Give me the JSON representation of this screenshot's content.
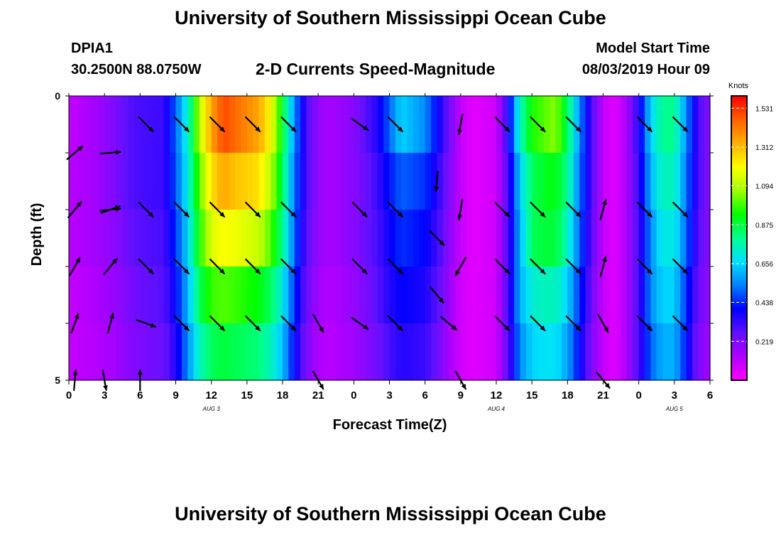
{
  "header": {
    "title": "University of Southern Mississippi Ocean Cube",
    "station_id": "DPIA1",
    "station_location": "30.2500N 88.0750W",
    "plot_title": "2-D Currents Speed-Magnitude",
    "model_start_label": "Model Start Time",
    "model_start_value": "08/03/2019 Hour 09"
  },
  "footer": {
    "title": "University of Southern Mississippi Ocean Cube"
  },
  "chart_data": {
    "type": "heatmap",
    "xlabel": "Forecast Time(Z)",
    "ylabel": "Depth (ft)",
    "x_tick_labels": [
      "0",
      "3",
      "6",
      "9",
      "12",
      "15",
      "18",
      "21",
      "0",
      "3",
      "6",
      "9",
      "12",
      "15",
      "18",
      "21",
      "0",
      "3",
      "6"
    ],
    "y_tick_labels": [
      "0",
      "5"
    ],
    "y_range": [
      0,
      5
    ],
    "x_range_hours": [
      0,
      54
    ],
    "date_labels": [
      {
        "label": "AUG 3",
        "hour": 12
      },
      {
        "label": "AUG 4",
        "hour": 36
      },
      {
        "label": "AUG 5",
        "hour": 51
      }
    ],
    "colorbar": {
      "unit": "Knots",
      "tick_labels": [
        "1.531",
        "1.312",
        "1.094",
        "0.875",
        "0.656",
        "0.438",
        "0.219"
      ],
      "tick_values": [
        1.531,
        1.312,
        1.094,
        0.875,
        0.656,
        0.438,
        0.219
      ],
      "range": [
        0,
        1.6
      ],
      "colors": [
        "#ff00ff",
        "#b000ff",
        "#6010ff",
        "#0000ff",
        "#0080ff",
        "#00e0ff",
        "#00ff90",
        "#00ff00",
        "#a0ff00",
        "#ffff00",
        "#ffb000",
        "#ff6000",
        "#ff0000"
      ]
    },
    "depth_bins": [
      0,
      1,
      2,
      3,
      4,
      5
    ],
    "speed_profile": {
      "hours": [
        0,
        2,
        4,
        5,
        6,
        8,
        9,
        10,
        11,
        12,
        13,
        14,
        15,
        16,
        17,
        18,
        19,
        20,
        21,
        22,
        24,
        25,
        26,
        27,
        28,
        30,
        31,
        32,
        33,
        34,
        36,
        37,
        38,
        39,
        40,
        41,
        42,
        43,
        44,
        45,
        46,
        47,
        48,
        49,
        50,
        51,
        52,
        53,
        54
      ],
      "rows": [
        [
          0.1,
          0.15,
          0.22,
          0.28,
          0.3,
          0.32,
          0.5,
          0.72,
          1.1,
          1.35,
          1.5,
          1.45,
          1.4,
          1.35,
          1.2,
          0.9,
          0.55,
          0.3,
          0.18,
          0.15,
          0.2,
          0.28,
          0.35,
          0.5,
          0.65,
          0.55,
          0.4,
          0.25,
          0.1,
          0.05,
          0.08,
          0.35,
          0.75,
          0.95,
          1.0,
          1.05,
          0.85,
          0.55,
          0.3,
          0.1,
          0.05,
          0.15,
          0.35,
          0.65,
          0.8,
          0.8,
          0.55,
          0.3,
          0.2
        ],
        [
          0.12,
          0.15,
          0.22,
          0.28,
          0.3,
          0.32,
          0.48,
          0.7,
          1.0,
          1.25,
          1.35,
          1.3,
          1.28,
          1.25,
          1.1,
          0.85,
          0.52,
          0.3,
          0.18,
          0.15,
          0.2,
          0.25,
          0.32,
          0.42,
          0.5,
          0.45,
          0.35,
          0.22,
          0.1,
          0.05,
          0.08,
          0.3,
          0.65,
          0.85,
          0.9,
          0.92,
          0.8,
          0.52,
          0.3,
          0.1,
          0.05,
          0.15,
          0.32,
          0.6,
          0.75,
          0.75,
          0.52,
          0.3,
          0.2
        ],
        [
          0.12,
          0.15,
          0.2,
          0.25,
          0.28,
          0.3,
          0.45,
          0.65,
          0.95,
          1.15,
          1.2,
          1.18,
          1.15,
          1.12,
          1.0,
          0.8,
          0.5,
          0.28,
          0.18,
          0.15,
          0.2,
          0.25,
          0.3,
          0.38,
          0.45,
          0.4,
          0.32,
          0.2,
          0.1,
          0.05,
          0.08,
          0.3,
          0.6,
          0.85,
          0.88,
          0.88,
          0.75,
          0.5,
          0.28,
          0.1,
          0.05,
          0.15,
          0.3,
          0.55,
          0.7,
          0.7,
          0.5,
          0.28,
          0.2
        ],
        [
          0.1,
          0.13,
          0.18,
          0.22,
          0.25,
          0.28,
          0.4,
          0.6,
          0.85,
          0.98,
          1.0,
          0.98,
          0.95,
          0.92,
          0.85,
          0.7,
          0.45,
          0.25,
          0.16,
          0.13,
          0.18,
          0.22,
          0.28,
          0.35,
          0.4,
          0.36,
          0.28,
          0.18,
          0.08,
          0.05,
          0.08,
          0.3,
          0.6,
          0.72,
          0.75,
          0.75,
          0.65,
          0.45,
          0.25,
          0.1,
          0.05,
          0.15,
          0.3,
          0.55,
          0.65,
          0.65,
          0.45,
          0.25,
          0.18
        ],
        [
          0.1,
          0.12,
          0.16,
          0.2,
          0.22,
          0.25,
          0.35,
          0.55,
          0.75,
          0.85,
          0.88,
          0.86,
          0.84,
          0.82,
          0.75,
          0.62,
          0.4,
          0.22,
          0.14,
          0.12,
          0.16,
          0.2,
          0.24,
          0.3,
          0.35,
          0.32,
          0.25,
          0.15,
          0.08,
          0.05,
          0.08,
          0.28,
          0.55,
          0.65,
          0.68,
          0.68,
          0.58,
          0.4,
          0.22,
          0.1,
          0.05,
          0.15,
          0.3,
          0.5,
          0.6,
          0.6,
          0.42,
          0.22,
          0.16
        ]
      ]
    },
    "arrows": [
      {
        "hour": 0.5,
        "depth": 1,
        "angle": -40
      },
      {
        "hour": 3.5,
        "depth": 1,
        "angle": -5
      },
      {
        "hour": 6.5,
        "depth": 0.5,
        "angle": 45
      },
      {
        "hour": 9.5,
        "depth": 0.5,
        "angle": 45
      },
      {
        "hour": 12.5,
        "depth": 0.5,
        "angle": 45
      },
      {
        "hour": 15.5,
        "depth": 0.5,
        "angle": 45
      },
      {
        "hour": 18.5,
        "depth": 0.5,
        "angle": 45
      },
      {
        "hour": 24.5,
        "depth": 0.5,
        "angle": 35
      },
      {
        "hour": 27.5,
        "depth": 0.5,
        "angle": 45
      },
      {
        "hour": 33,
        "depth": 0.5,
        "angle": 100
      },
      {
        "hour": 36.5,
        "depth": 0.5,
        "angle": 45
      },
      {
        "hour": 39.5,
        "depth": 0.5,
        "angle": 45
      },
      {
        "hour": 42.5,
        "depth": 0.5,
        "angle": 45
      },
      {
        "hour": 48.5,
        "depth": 0.5,
        "angle": 45
      },
      {
        "hour": 51.5,
        "depth": 0.5,
        "angle": 45
      },
      {
        "hour": 3.5,
        "depth": 2,
        "angle": -5
      },
      {
        "hour": 6.5,
        "depth": 2,
        "angle": 45
      },
      {
        "hour": 9.5,
        "depth": 2,
        "angle": 45
      },
      {
        "hour": 12.5,
        "depth": 2,
        "angle": 45
      },
      {
        "hour": 15.5,
        "depth": 2,
        "angle": 45
      },
      {
        "hour": 18.5,
        "depth": 2,
        "angle": 45
      },
      {
        "hour": 24.5,
        "depth": 2,
        "angle": 45
      },
      {
        "hour": 27.5,
        "depth": 2,
        "angle": 45
      },
      {
        "hour": 31,
        "depth": 1.5,
        "angle": 95
      },
      {
        "hour": 33,
        "depth": 2,
        "angle": 100
      },
      {
        "hour": 36.5,
        "depth": 2,
        "angle": 45
      },
      {
        "hour": 39.5,
        "depth": 2,
        "angle": 45
      },
      {
        "hour": 42.5,
        "depth": 2,
        "angle": 45
      },
      {
        "hour": 45,
        "depth": 2,
        "angle": -75
      },
      {
        "hour": 48.5,
        "depth": 2,
        "angle": 45
      },
      {
        "hour": 51.5,
        "depth": 2,
        "angle": 45
      },
      {
        "hour": 0.5,
        "depth": 2,
        "angle": -50
      },
      {
        "hour": 3.5,
        "depth": 2,
        "angle": -20
      },
      {
        "hour": 6.5,
        "depth": 3,
        "angle": 45
      },
      {
        "hour": 9.5,
        "depth": 3,
        "angle": 45
      },
      {
        "hour": 12.5,
        "depth": 3,
        "angle": 45
      },
      {
        "hour": 15.5,
        "depth": 3,
        "angle": 45
      },
      {
        "hour": 18.5,
        "depth": 3,
        "angle": 45
      },
      {
        "hour": 24.5,
        "depth": 3,
        "angle": 45
      },
      {
        "hour": 27.5,
        "depth": 3,
        "angle": 45
      },
      {
        "hour": 31,
        "depth": 2.5,
        "angle": 45
      },
      {
        "hour": 33,
        "depth": 3,
        "angle": 120
      },
      {
        "hour": 36.5,
        "depth": 3,
        "angle": 45
      },
      {
        "hour": 39.5,
        "depth": 3,
        "angle": 45
      },
      {
        "hour": 42.5,
        "depth": 3,
        "angle": 45
      },
      {
        "hour": 45,
        "depth": 3,
        "angle": -75
      },
      {
        "hour": 48.5,
        "depth": 3,
        "angle": 45
      },
      {
        "hour": 51.5,
        "depth": 3,
        "angle": 45
      },
      {
        "hour": 0.5,
        "depth": 3,
        "angle": -60
      },
      {
        "hour": 3.5,
        "depth": 3,
        "angle": -50
      },
      {
        "hour": 0.5,
        "depth": 4,
        "angle": -70
      },
      {
        "hour": 3.5,
        "depth": 4,
        "angle": -75
      },
      {
        "hour": 6.5,
        "depth": 4,
        "angle": 20
      },
      {
        "hour": 9.5,
        "depth": 4,
        "angle": 45
      },
      {
        "hour": 12.5,
        "depth": 4,
        "angle": 45
      },
      {
        "hour": 15.5,
        "depth": 4,
        "angle": 45
      },
      {
        "hour": 18.5,
        "depth": 4,
        "angle": 45
      },
      {
        "hour": 21,
        "depth": 4,
        "angle": 60
      },
      {
        "hour": 24.5,
        "depth": 4,
        "angle": 35
      },
      {
        "hour": 27.5,
        "depth": 4,
        "angle": 45
      },
      {
        "hour": 31,
        "depth": 3.5,
        "angle": 50
      },
      {
        "hour": 32,
        "depth": 4,
        "angle": 40
      },
      {
        "hour": 36.5,
        "depth": 4,
        "angle": 45
      },
      {
        "hour": 39.5,
        "depth": 4,
        "angle": 45
      },
      {
        "hour": 42.5,
        "depth": 4,
        "angle": 45
      },
      {
        "hour": 45,
        "depth": 4,
        "angle": 60
      },
      {
        "hour": 48.5,
        "depth": 4,
        "angle": 45
      },
      {
        "hour": 51.5,
        "depth": 4,
        "angle": 45
      },
      {
        "hour": 0.5,
        "depth": 5,
        "angle": -85
      },
      {
        "hour": 3,
        "depth": 5,
        "angle": 80
      },
      {
        "hour": 6,
        "depth": 5,
        "angle": -90
      },
      {
        "hour": 21,
        "depth": 5,
        "angle": 60
      },
      {
        "hour": 33,
        "depth": 5,
        "angle": 60
      },
      {
        "hour": 45,
        "depth": 5,
        "angle": 50
      }
    ]
  }
}
